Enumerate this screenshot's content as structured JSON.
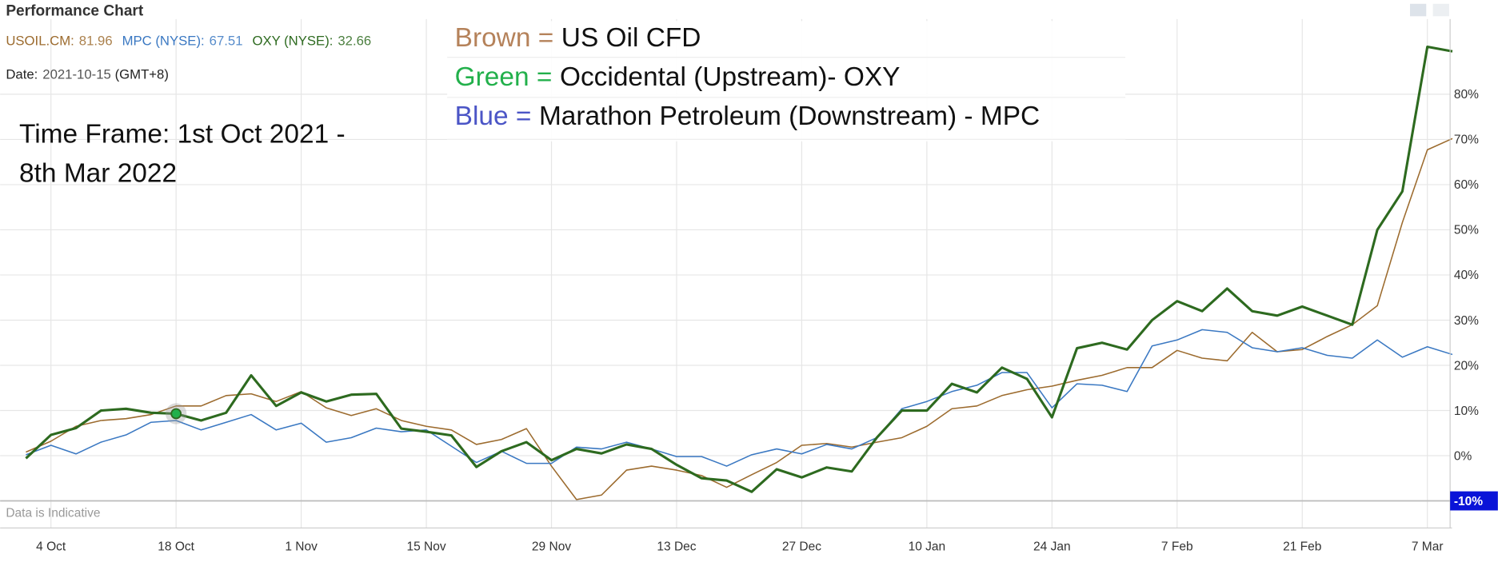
{
  "chart_data": {
    "type": "line",
    "title": "Performance Chart",
    "separator": ":",
    "hover": {
      "date_label": "Date",
      "date": "2021-10-15",
      "timezone": "(GMT+8)",
      "index": 6
    },
    "annotation_rows": [
      {
        "key": "Brown =",
        "text": "US Oil CFD",
        "color": "#b5825a"
      },
      {
        "key": "Green =",
        "text": "Occidental (Upstream)- OXY",
        "color": "#22b04b"
      },
      {
        "key": "Blue =",
        "text": "Marathon Petroleum (Downstream) - MPC",
        "color": "#4b55c6"
      }
    ],
    "timeframe": [
      "Time Frame: 1st Oct 2021 -",
      "8th Mar 2022"
    ],
    "footnote": "Data is Indicative",
    "categories": [
      null,
      "4 Oct",
      null,
      null,
      null,
      null,
      "18 Oct",
      null,
      null,
      null,
      null,
      "1 Nov",
      null,
      null,
      null,
      null,
      "15 Nov",
      null,
      null,
      null,
      null,
      "29 Nov",
      null,
      null,
      null,
      null,
      "13 Dec",
      null,
      null,
      null,
      null,
      "27 Dec",
      null,
      null,
      null,
      null,
      "10 Jan",
      null,
      null,
      null,
      null,
      "24 Jan",
      null,
      null,
      null,
      null,
      "7 Feb",
      null,
      null,
      null,
      null,
      "21 Feb",
      null,
      null,
      null,
      null,
      "7 Mar",
      null
    ],
    "series": [
      {
        "name": "USOIL.CM",
        "color": "#9c6b2e",
        "readout": 81.96,
        "values": [
          0.8,
          3.2,
          6.5,
          7.8,
          8.2,
          9.1,
          11,
          11,
          13.3,
          13.7,
          12,
          14.2,
          10.6,
          8.9,
          10.4,
          7.8,
          6.5,
          5.7,
          2.5,
          3.6,
          6,
          -2.3,
          -9.7,
          -8.7,
          -3.2,
          -2.3,
          -3.2,
          -4.4,
          -7,
          -4.2,
          -1.5,
          2.3,
          2.7,
          1.9,
          3,
          4,
          6.5,
          10.4,
          11,
          13.3,
          14.6,
          15.4,
          16.7,
          17.8,
          19.5,
          19.5,
          23.3,
          21.6,
          21,
          27.3,
          23,
          23.5,
          26.4,
          29,
          33.2,
          51.6,
          67.7,
          70.2
        ]
      },
      {
        "name": "MPC (NYSE)",
        "color": "#3a78c2",
        "readout": 67.51,
        "values": [
          0.2,
          2.3,
          0.4,
          3,
          4.6,
          7.4,
          7.8,
          5.7,
          7.4,
          9.1,
          5.7,
          7.2,
          3,
          4,
          6.1,
          5.3,
          5.7,
          2.1,
          -1.5,
          1,
          -1.7,
          -1.7,
          1.9,
          1.5,
          3,
          1.5,
          -0.2,
          -0.2,
          -2.3,
          0.2,
          1.5,
          0.4,
          2.5,
          1.5,
          4,
          10.4,
          12,
          14.2,
          15.6,
          18.4,
          18.4,
          10.6,
          15.9,
          15.6,
          14.2,
          24.3,
          25.6,
          27.9,
          27.3,
          23.9,
          23,
          23.9,
          22.2,
          21.6,
          25.6,
          21.8,
          24.1,
          22.4
        ]
      },
      {
        "name": "OXY (NYSE)",
        "color": "#2d6a1f",
        "readout": 32.66,
        "values": [
          -0.6,
          4.6,
          6.1,
          10,
          10.4,
          9.5,
          9.3,
          7.8,
          9.5,
          17.8,
          11,
          14,
          12,
          13.5,
          13.7,
          6,
          5.3,
          4.5,
          -2.5,
          1,
          3,
          -1,
          1.5,
          0.5,
          2.5,
          1.5,
          -2,
          -5,
          -5.5,
          -8,
          -3,
          -4.8,
          -2.6,
          -3.5,
          4,
          10,
          10,
          15.9,
          14,
          19.5,
          17,
          8.5,
          23.8,
          25,
          23.5,
          30,
          34.2,
          32,
          37,
          32,
          31,
          33,
          31,
          29,
          50,
          58.5,
          90.5,
          89.5
        ]
      }
    ],
    "ylim": [
      -16,
      96
    ],
    "yticks": [
      {
        "value": -10,
        "label": "-10%"
      },
      {
        "value": 0,
        "label": "0%"
      },
      {
        "value": 10,
        "label": "10%"
      },
      {
        "value": 20,
        "label": "20%"
      },
      {
        "value": 30,
        "label": "30%"
      },
      {
        "value": 40,
        "label": "40%"
      },
      {
        "value": 50,
        "label": "50%"
      },
      {
        "value": 60,
        "label": "60%"
      },
      {
        "value": 70,
        "label": "70%"
      },
      {
        "value": 80,
        "label": "80%"
      }
    ],
    "highlight_tick": 0,
    "highlight_color": "#0a14d8",
    "grid": true
  }
}
